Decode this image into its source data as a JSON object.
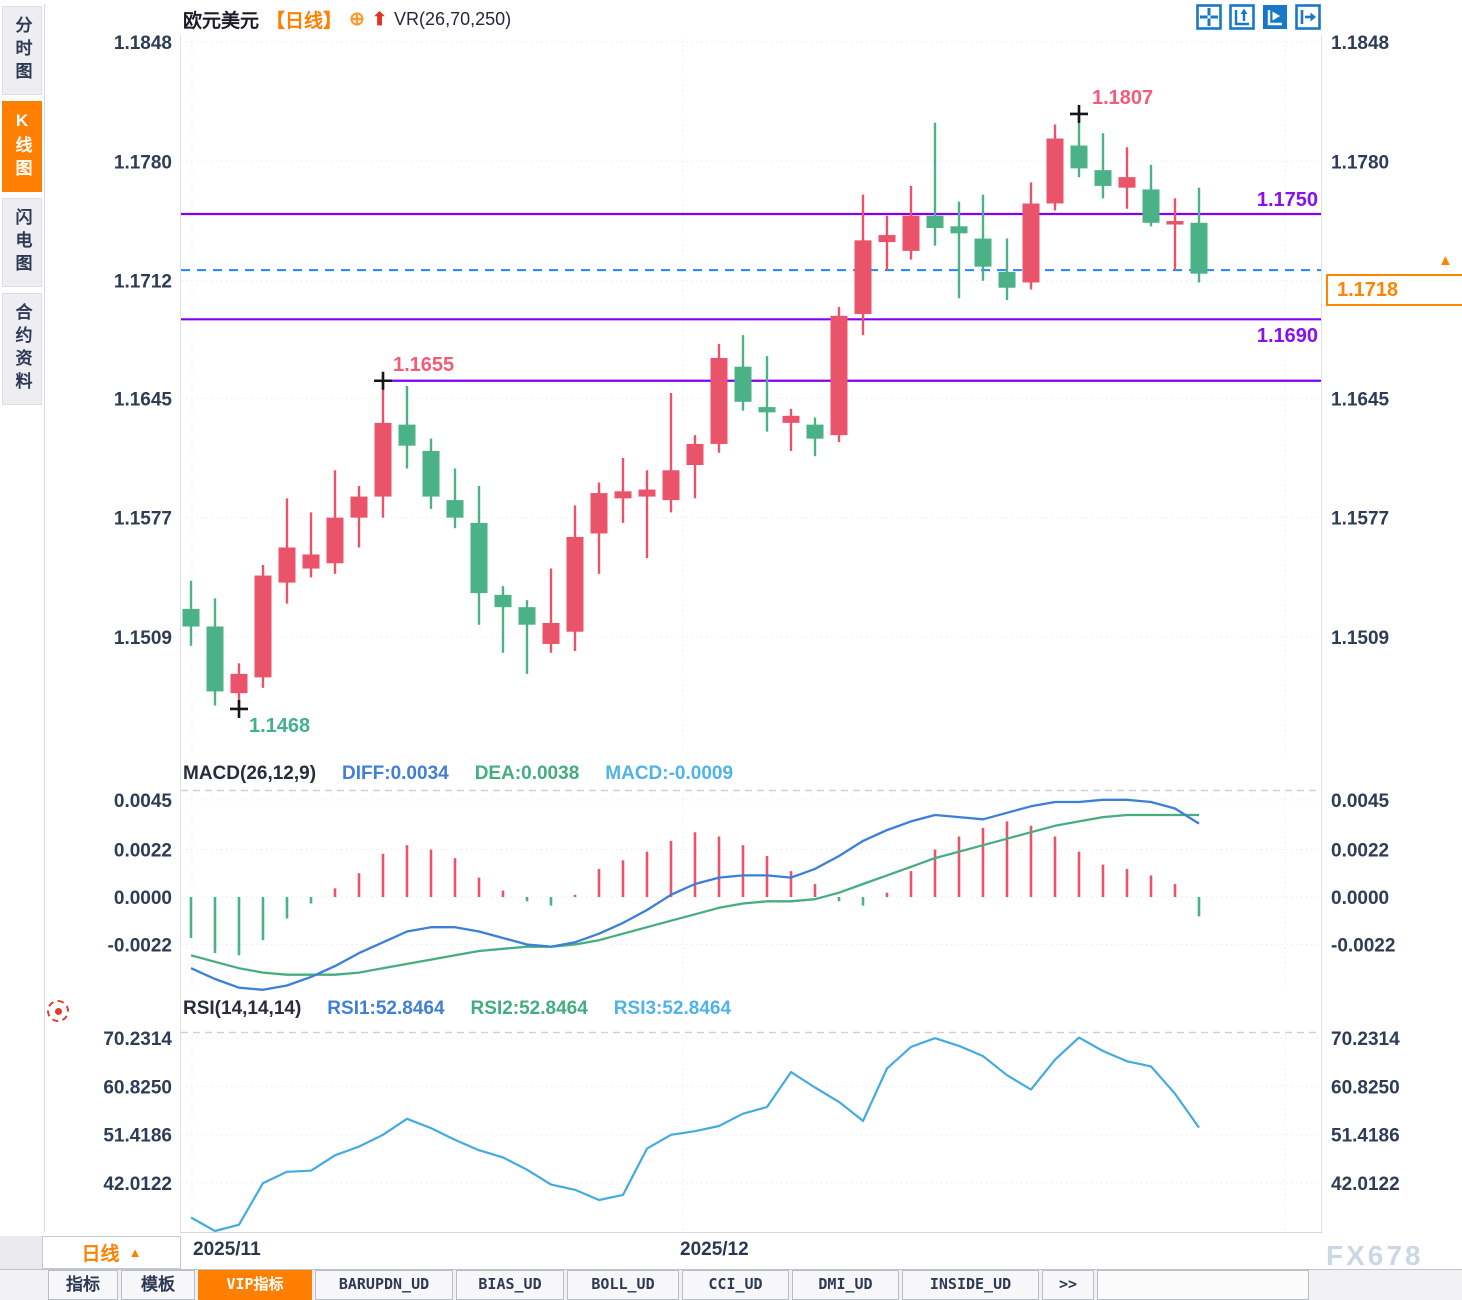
{
  "header": {
    "symbol": "欧元美元",
    "period": "【日线】",
    "plus": "⊕",
    "arrow": "⬆",
    "indicator": "VR(26,70,250)"
  },
  "sidebar": {
    "tabs": [
      {
        "label": "分时图",
        "active": false
      },
      {
        "label": "K线图",
        "active": true
      },
      {
        "label": "闪电图",
        "active": false
      },
      {
        "label": "合约资料",
        "active": false
      }
    ]
  },
  "toolbar": {
    "icons": [
      "pane-layout-icon",
      "axis-zoom-icon",
      "auto-scale-icon",
      "pan-right-icon"
    ]
  },
  "colors": {
    "up": "#e9546b",
    "down": "#4bb287",
    "level_line": "#8000f0",
    "current_price_line": "#2287f5",
    "accent_orange": "#ff8000",
    "diff_line": "#3c7fd8",
    "dea_line": "#46ae7e",
    "rsi_line": "#44abdf"
  },
  "chart_data": [
    {
      "type": "candlestick",
      "title": "欧元美元【日线】",
      "indicator": "VR(26,70,250)",
      "y_axis_ticks": [
        "1.1848",
        "1.1780",
        "1.1712",
        "1.1645",
        "1.1577",
        "1.1509"
      ],
      "x_axis_labels": [
        "2025/11",
        "2025/12"
      ],
      "ylim": [
        1.146,
        1.1855
      ],
      "grid": true,
      "ohlc": [
        [
          1.1525,
          1.1541,
          1.1504,
          1.1515
        ],
        [
          1.1515,
          1.1531,
          1.147,
          1.1478
        ],
        [
          1.1477,
          1.1494,
          1.1468,
          1.1488
        ],
        [
          1.1486,
          1.155,
          1.148,
          1.1544
        ],
        [
          1.154,
          1.1588,
          1.1528,
          1.156
        ],
        [
          1.1548,
          1.158,
          1.1543,
          1.1556
        ],
        [
          1.1551,
          1.1604,
          1.1545,
          1.1577
        ],
        [
          1.1577,
          1.1595,
          1.156,
          1.1589
        ],
        [
          1.1589,
          1.1655,
          1.1577,
          1.1631
        ],
        [
          1.163,
          1.1652,
          1.1605,
          1.1618
        ],
        [
          1.1615,
          1.1622,
          1.1582,
          1.1589
        ],
        [
          1.1587,
          1.1605,
          1.1571,
          1.1577
        ],
        [
          1.1574,
          1.1595,
          1.1516,
          1.1534
        ],
        [
          1.1533,
          1.1538,
          1.15,
          1.1526
        ],
        [
          1.1526,
          1.153,
          1.1488,
          1.1516
        ],
        [
          1.1505,
          1.1548,
          1.15,
          1.1517
        ],
        [
          1.1512,
          1.1584,
          1.1501,
          1.1566
        ],
        [
          1.1568,
          1.1597,
          1.1545,
          1.1591
        ],
        [
          1.1588,
          1.1611,
          1.1574,
          1.1592
        ],
        [
          1.1589,
          1.1604,
          1.1554,
          1.1593
        ],
        [
          1.1587,
          1.1648,
          1.158,
          1.1604
        ],
        [
          1.1607,
          1.1624,
          1.1588,
          1.1619
        ],
        [
          1.1619,
          1.1676,
          1.1614,
          1.1668
        ],
        [
          1.1663,
          1.1681,
          1.1638,
          1.1643
        ],
        [
          1.164,
          1.1669,
          1.1626,
          1.1637
        ],
        [
          1.1631,
          1.1639,
          1.1615,
          1.1635
        ],
        [
          1.163,
          1.1634,
          1.1612,
          1.1622
        ],
        [
          1.1624,
          1.1697,
          1.162,
          1.1692
        ],
        [
          1.1693,
          1.1761,
          1.1681,
          1.1735
        ],
        [
          1.1734,
          1.1749,
          1.1718,
          1.1738
        ],
        [
          1.1729,
          1.1766,
          1.1724,
          1.1749
        ],
        [
          1.1749,
          1.1802,
          1.1732,
          1.1742
        ],
        [
          1.1743,
          1.1757,
          1.1702,
          1.1739
        ],
        [
          1.1736,
          1.1761,
          1.1712,
          1.172
        ],
        [
          1.1717,
          1.1736,
          1.1701,
          1.1708
        ],
        [
          1.1711,
          1.1768,
          1.1707,
          1.1756
        ],
        [
          1.1756,
          1.1801,
          1.1752,
          1.1793
        ],
        [
          1.1789,
          1.1807,
          1.1771,
          1.1776
        ],
        [
          1.1775,
          1.1796,
          1.1759,
          1.1766
        ],
        [
          1.1765,
          1.1788,
          1.1753,
          1.1771
        ],
        [
          1.1764,
          1.1778,
          1.1743,
          1.1745
        ],
        [
          1.1744,
          1.1759,
          1.1718,
          1.1746
        ],
        [
          1.1745,
          1.1765,
          1.1711,
          1.1716
        ]
      ],
      "levels": [
        {
          "price": 1.175,
          "label": "1.1750"
        },
        {
          "price": 1.169,
          "label": "1.1690"
        },
        {
          "price": 1.1655,
          "label": "1.1655",
          "start_index": 8
        }
      ],
      "level_labels": {
        "r1": "1.1750",
        "r2": "1.1690"
      },
      "current_price": 1.1718,
      "current_price_label": "1.1718",
      "annotations": {
        "high": "1.1807",
        "shoulder": "1.1655",
        "low": "1.1468"
      },
      "markers": [
        {
          "index": 2,
          "at": "low"
        },
        {
          "index": 8,
          "at": "high"
        },
        {
          "index": 37,
          "at": "high"
        }
      ]
    },
    {
      "type": "bar",
      "label": "MACD(26,12,9)",
      "diff_label": "DIFF:0.0034",
      "dea_label": "DEA:0.0038",
      "macd_label": "MACD:-0.0009",
      "y_axis_ticks": [
        "0.0045",
        "0.0022",
        "0.0000",
        "-0.0022"
      ],
      "histogram": [
        -0.0019,
        -0.0026,
        -0.0027,
        -0.002,
        -0.001,
        -0.0003,
        0.0004,
        0.0011,
        0.002,
        0.0024,
        0.0022,
        0.0018,
        0.0009,
        0.0003,
        -0.0002,
        -0.0004,
        0.0001,
        0.0013,
        0.0017,
        0.0021,
        0.0026,
        0.003,
        0.0028,
        0.0024,
        0.0019,
        0.0012,
        0.0006,
        -0.0002,
        -0.0004,
        0.0002,
        0.0012,
        0.0022,
        0.0028,
        0.0032,
        0.0035,
        0.0033,
        0.0028,
        0.0021,
        0.0015,
        0.0013,
        0.001,
        0.0006,
        -0.0009
      ],
      "diff_line": [
        -0.0033,
        -0.0038,
        -0.0042,
        -0.0043,
        -0.0041,
        -0.0037,
        -0.0032,
        -0.0026,
        -0.0021,
        -0.0016,
        -0.0014,
        -0.0014,
        -0.0016,
        -0.0019,
        -0.0022,
        -0.0023,
        -0.0021,
        -0.0017,
        -0.0012,
        -0.0006,
        0.0001,
        0.0006,
        0.0009,
        0.001,
        0.001,
        0.0009,
        0.0013,
        0.0019,
        0.0026,
        0.0031,
        0.0035,
        0.0038,
        0.0037,
        0.0036,
        0.0039,
        0.0042,
        0.0044,
        0.0044,
        0.0045,
        0.0045,
        0.0044,
        0.0041,
        0.0034
      ],
      "dea_line": [
        -0.0027,
        -0.003,
        -0.0033,
        -0.0035,
        -0.0036,
        -0.0036,
        -0.0036,
        -0.0035,
        -0.0033,
        -0.0031,
        -0.0029,
        -0.0027,
        -0.0025,
        -0.0024,
        -0.0023,
        -0.0023,
        -0.0022,
        -0.002,
        -0.0017,
        -0.0014,
        -0.0011,
        -0.0008,
        -0.0005,
        -0.0003,
        -0.0002,
        -0.0002,
        -0.0001,
        0.0002,
        0.0006,
        0.001,
        0.0014,
        0.0018,
        0.0021,
        0.0024,
        0.0027,
        0.003,
        0.0033,
        0.0035,
        0.0037,
        0.0038,
        0.0038,
        0.0038,
        0.0038
      ]
    },
    {
      "type": "line",
      "label": "RSI(14,14,14)",
      "rsi1_label": "RSI1:52.8464",
      "rsi2_label": "RSI2:52.8464",
      "rsi3_label": "RSI3:52.8464",
      "y_axis_ticks": [
        "70.2314",
        "60.8250",
        "51.4186",
        "42.0122"
      ],
      "values": [
        35.3,
        32.5,
        33.9,
        42.0,
        44.2,
        44.4,
        47.4,
        49.1,
        51.4,
        54.5,
        52.7,
        50.4,
        48.4,
        47.0,
        44.6,
        41.7,
        40.7,
        38.7,
        39.7,
        48.7,
        51.4,
        52.1,
        53.1,
        55.5,
        56.8,
        63.6,
        60.6,
        57.8,
        54.1,
        64.3,
        68.5,
        70.2,
        68.7,
        66.7,
        63.0,
        60.2,
        66.0,
        70.3,
        67.7,
        65.7,
        64.7,
        59.4,
        52.8
      ]
    }
  ],
  "bottom": {
    "period_selector": "日线",
    "period_arrow": "▲",
    "tabs": [
      {
        "label": "指标",
        "active": false
      },
      {
        "label": "模板",
        "active": false
      },
      {
        "label": "VIP指标",
        "active": true
      },
      {
        "label": "BARUPDN_UD",
        "active": false
      },
      {
        "label": "BIAS_UD",
        "active": false
      },
      {
        "label": "BOLL_UD",
        "active": false
      },
      {
        "label": "CCI_UD",
        "active": false
      },
      {
        "label": "DMI_UD",
        "active": false
      },
      {
        "label": "INSIDE_UD",
        "active": false
      },
      {
        "label": ">>",
        "active": false
      }
    ],
    "watermark": "FX678"
  }
}
